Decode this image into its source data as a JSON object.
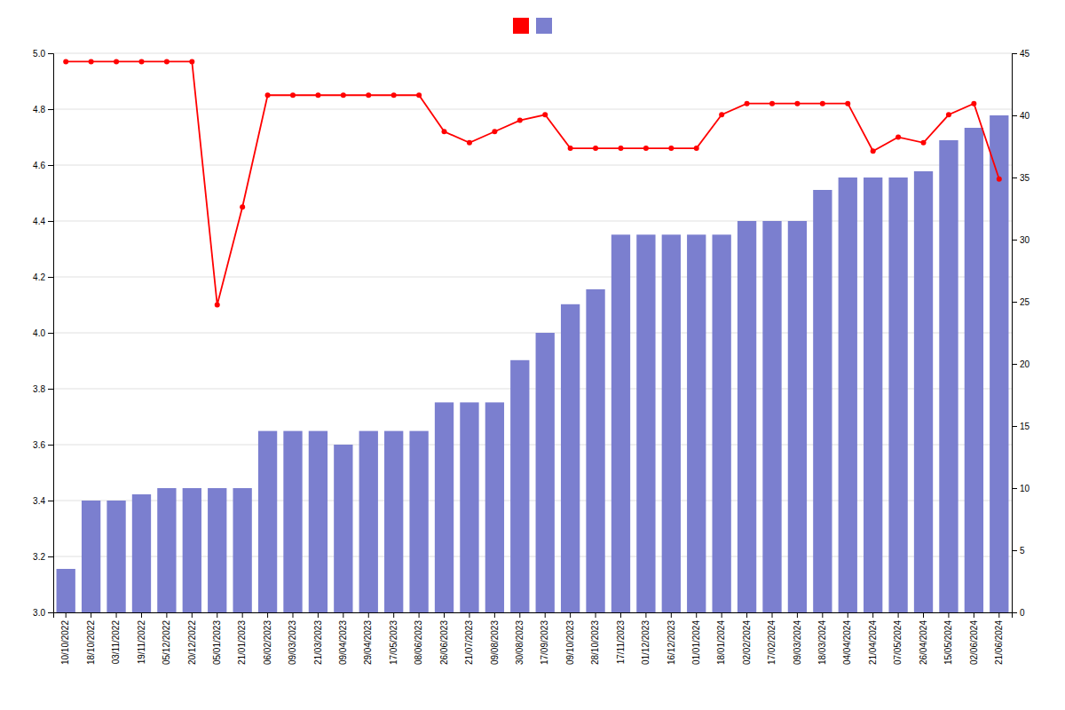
{
  "chart_data": {
    "type": "bar",
    "categories": [
      "10/10/2022",
      "18/10/2022",
      "03/11/2022",
      "19/11/2022",
      "05/12/2022",
      "20/12/2022",
      "05/01/2023",
      "21/01/2023",
      "06/02/2023",
      "09/03/2023",
      "21/03/2023",
      "09/04/2023",
      "29/04/2023",
      "17/05/2023",
      "08/06/2023",
      "26/06/2023",
      "21/07/2023",
      "09/08/2023",
      "30/08/2023",
      "17/09/2023",
      "09/10/2023",
      "28/10/2023",
      "17/11/2023",
      "01/12/2023",
      "16/12/2023",
      "01/01/2024",
      "18/01/2024",
      "02/02/2024",
      "17/02/2024",
      "09/03/2024",
      "18/03/2024",
      "04/04/2024",
      "21/04/2024",
      "07/05/2024",
      "26/04/2024",
      "15/05/2024",
      "02/06/2024",
      "21/06/2024"
    ],
    "series": [
      {
        "type": "line",
        "color": "#ff0000",
        "marker": "circle",
        "values": [
          4.97,
          4.97,
          4.97,
          4.97,
          4.97,
          4.97,
          4.1,
          4.45,
          4.85,
          4.85,
          4.85,
          4.85,
          4.85,
          4.85,
          4.85,
          4.72,
          4.68,
          4.72,
          4.76,
          4.78,
          4.66,
          4.66,
          4.66,
          4.66,
          4.66,
          4.66,
          4.78,
          4.82,
          4.82,
          4.82,
          4.82,
          4.82,
          4.65,
          4.7,
          4.68,
          4.78,
          4.82,
          4.55
        ]
      },
      {
        "type": "bar",
        "color": "#7b7fcf",
        "axis": "y2",
        "values": [
          3.5,
          9,
          9,
          9.5,
          10,
          10,
          10,
          10,
          14.6,
          14.6,
          14.6,
          13.5,
          14.6,
          14.6,
          14.6,
          16.9,
          16.9,
          16.9,
          20.3,
          22.5,
          24.8,
          26,
          30.4,
          30.4,
          30.4,
          30.4,
          30.4,
          31.5,
          31.5,
          31.5,
          34,
          35,
          35,
          35,
          35.5,
          38,
          39,
          40
        ]
      }
    ],
    "ylim": [
      3.0,
      5.0
    ],
    "yticks": [
      {
        "value": 3.0,
        "label": "3.0"
      },
      3.2,
      3.4,
      3.6,
      3.8,
      {
        "value": 4.0,
        "label": "4.0"
      },
      4.2,
      4.4,
      4.6,
      4.8,
      {
        "value": 5.0,
        "label": "5.0"
      }
    ],
    "y2lim": [
      0,
      45
    ],
    "y2ticks": [
      0,
      5,
      10,
      15,
      20,
      25,
      30,
      35,
      40,
      45
    ],
    "grid": true,
    "legend": "top"
  }
}
